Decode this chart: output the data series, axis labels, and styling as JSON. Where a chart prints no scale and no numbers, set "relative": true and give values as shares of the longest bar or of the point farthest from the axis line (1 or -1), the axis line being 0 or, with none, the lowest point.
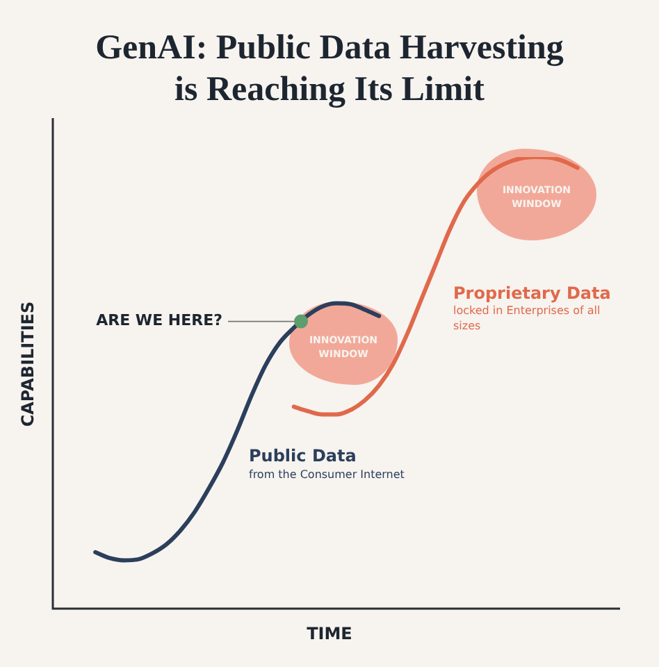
{
  "chart_data": {
    "type": "line",
    "title": "GenAI: Public Data Harvesting is Reaching Its Limit",
    "xlabel": "TIME",
    "ylabel": "CAPABILITIES",
    "relative": true,
    "legend": false,
    "marker": "none",
    "categories": [
      null,
      null,
      null,
      null,
      null,
      null,
      null,
      null,
      null,
      null,
      null,
      null,
      null,
      null,
      null,
      null,
      null,
      null,
      null,
      null,
      null,
      null,
      null,
      null,
      null,
      null,
      null,
      null,
      null,
      null,
      null,
      null,
      null,
      null,
      null,
      null,
      null,
      null,
      null,
      null,
      null
    ],
    "series": [
      {
        "name": "Public Data",
        "color": "#2b3f5c",
        "values": [
          null,
          null,
          null,
          0.125,
          0.112,
          0.107,
          0.109,
          0.122,
          0.142,
          0.173,
          0.214,
          0.266,
          0.324,
          0.394,
          0.471,
          0.539,
          0.589,
          0.622,
          0.65,
          0.669,
          0.676,
          0.674,
          0.662,
          0.648,
          null,
          null,
          null,
          null,
          null,
          null,
          null,
          null,
          null,
          null,
          null,
          null,
          null,
          null,
          null,
          null,
          null
        ]
      },
      {
        "name": "Proprietary Data",
        "color": "#e0694b",
        "values": [
          null,
          null,
          null,
          null,
          null,
          null,
          null,
          null,
          null,
          null,
          null,
          null,
          null,
          null,
          null,
          null,
          null,
          0.447,
          0.437,
          0.43,
          0.43,
          0.44,
          0.461,
          0.494,
          0.542,
          0.609,
          0.686,
          0.763,
          0.84,
          0.902,
          0.942,
          0.97,
          0.987,
          0.997,
          1,
          0.999,
          0.991,
          0.976,
          null,
          null,
          null
        ]
      }
    ],
    "annotations": [
      "ARE WE HERE?",
      "INNOVATION WINDOW",
      "INNOVATION WINDOW",
      "from the Consumer Internet",
      "locked in Enterprises of all sizes"
    ]
  }
}
